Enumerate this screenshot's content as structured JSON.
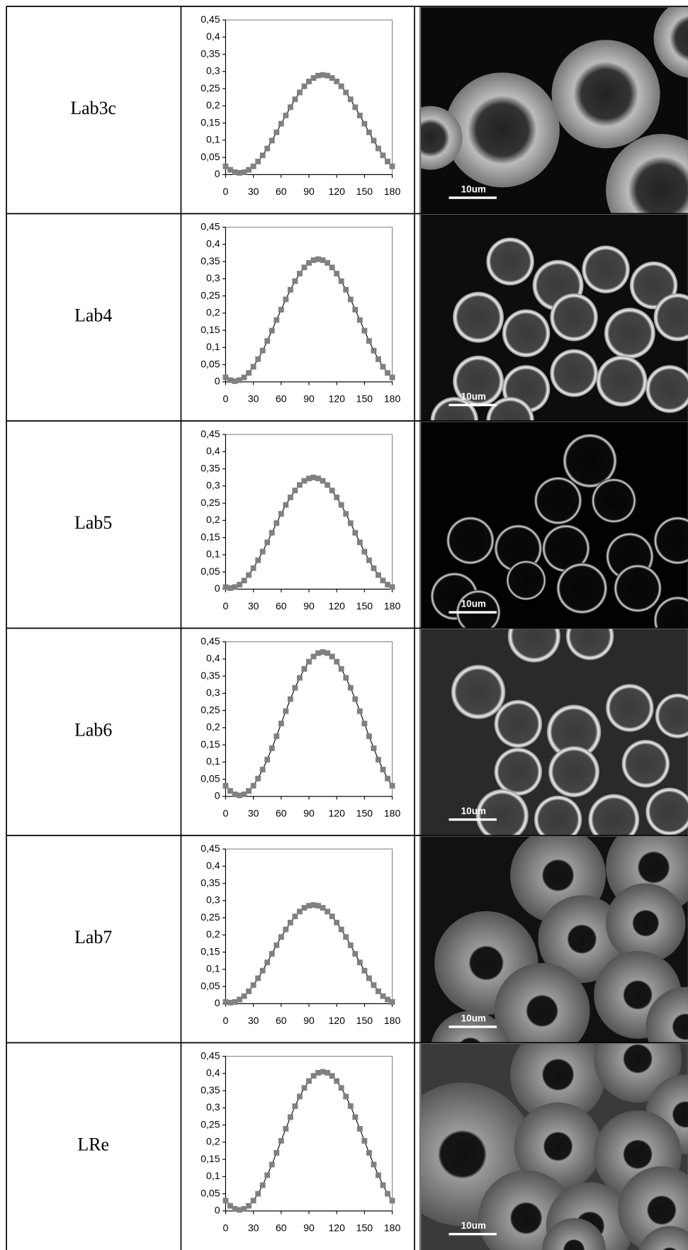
{
  "table": {
    "rows": [
      {
        "label": "Lab3c",
        "scale_bar": "10um"
      },
      {
        "label": "Lab4",
        "scale_bar": "10um"
      },
      {
        "label": "Lab5",
        "scale_bar": "10um"
      },
      {
        "label": "Lab6",
        "scale_bar": "10um"
      },
      {
        "label": "Lab7",
        "scale_bar": "10um"
      },
      {
        "label": "LRe",
        "scale_bar": "10um"
      }
    ]
  },
  "chart_data": [
    {
      "type": "line",
      "x": [
        0,
        5,
        10,
        15,
        20,
        25,
        30,
        35,
        40,
        45,
        50,
        55,
        60,
        65,
        70,
        75,
        80,
        85,
        90,
        95,
        100,
        105,
        110,
        115,
        120,
        125,
        130,
        135,
        140,
        145,
        150,
        155,
        160,
        165,
        170,
        175,
        180
      ],
      "values": [
        0.024,
        0.014,
        0.007,
        0.005,
        0.007,
        0.014,
        0.024,
        0.038,
        0.056,
        0.076,
        0.099,
        0.123,
        0.148,
        0.172,
        0.196,
        0.219,
        0.239,
        0.257,
        0.271,
        0.281,
        0.288,
        0.29,
        0.288,
        0.281,
        0.271,
        0.257,
        0.239,
        0.219,
        0.196,
        0.172,
        0.148,
        0.123,
        0.099,
        0.076,
        0.056,
        0.038,
        0.024
      ],
      "line_color": "#000000",
      "marker_color": "#808080",
      "xlim": [
        0,
        180
      ],
      "ylim": [
        0,
        0.45
      ],
      "xticks": [
        0,
        30,
        60,
        90,
        120,
        150,
        180
      ],
      "yticks": [
        0,
        {
          "value": 0.05,
          "label": "0,05"
        },
        {
          "value": 0.1,
          "label": "0,1"
        },
        {
          "value": 0.15,
          "label": "0,15"
        },
        {
          "value": 0.2,
          "label": "0,2"
        },
        {
          "value": 0.25,
          "label": "0,25"
        },
        {
          "value": 0.3,
          "label": "0,3"
        },
        {
          "value": 0.35,
          "label": "0,35"
        },
        {
          "value": 0.4,
          "label": "0,4"
        },
        {
          "value": 0.45,
          "label": "0,45"
        }
      ]
    },
    {
      "type": "line",
      "x": [
        0,
        5,
        10,
        15,
        20,
        25,
        30,
        35,
        40,
        45,
        50,
        55,
        60,
        65,
        70,
        75,
        80,
        85,
        90,
        95,
        100,
        105,
        110,
        115,
        120,
        125,
        130,
        135,
        140,
        145,
        150,
        155,
        160,
        165,
        170,
        175,
        180
      ],
      "values": [
        0.013,
        0.005,
        0.002,
        0.005,
        0.013,
        0.026,
        0.044,
        0.066,
        0.091,
        0.119,
        0.149,
        0.18,
        0.21,
        0.24,
        0.268,
        0.293,
        0.315,
        0.333,
        0.346,
        0.354,
        0.357,
        0.354,
        0.346,
        0.333,
        0.315,
        0.293,
        0.268,
        0.24,
        0.21,
        0.18,
        0.149,
        0.119,
        0.091,
        0.066,
        0.044,
        0.026,
        0.013
      ],
      "line_color": "#000000",
      "marker_color": "#808080",
      "xlim": [
        0,
        180
      ],
      "ylim": [
        0,
        0.45
      ],
      "xticks": [
        0,
        30,
        60,
        90,
        120,
        150,
        180
      ],
      "yticks": [
        0,
        {
          "value": 0.05,
          "label": "0,05"
        },
        {
          "value": 0.1,
          "label": "0,1"
        },
        {
          "value": 0.15,
          "label": "0,15"
        },
        {
          "value": 0.2,
          "label": "0,2"
        },
        {
          "value": 0.25,
          "label": "0,25"
        },
        {
          "value": 0.3,
          "label": "0,3"
        },
        {
          "value": 0.35,
          "label": "0,35"
        },
        {
          "value": 0.4,
          "label": "0,4"
        },
        {
          "value": 0.45,
          "label": "0,45"
        }
      ]
    },
    {
      "type": "line",
      "x": [
        0,
        5,
        10,
        15,
        20,
        25,
        30,
        35,
        40,
        45,
        50,
        55,
        60,
        65,
        70,
        75,
        80,
        85,
        90,
        95,
        100,
        105,
        110,
        115,
        120,
        125,
        130,
        135,
        140,
        145,
        150,
        155,
        160,
        165,
        170,
        175,
        180
      ],
      "values": [
        0.006,
        0.003,
        0.006,
        0.013,
        0.025,
        0.041,
        0.061,
        0.084,
        0.109,
        0.136,
        0.164,
        0.192,
        0.219,
        0.245,
        0.267,
        0.287,
        0.303,
        0.315,
        0.322,
        0.325,
        0.322,
        0.315,
        0.303,
        0.287,
        0.267,
        0.245,
        0.219,
        0.192,
        0.164,
        0.136,
        0.109,
        0.084,
        0.061,
        0.041,
        0.025,
        0.013,
        0.006
      ],
      "line_color": "#000000",
      "marker_color": "#808080",
      "xlim": [
        0,
        180
      ],
      "ylim": [
        0,
        0.45
      ],
      "xticks": [
        0,
        30,
        60,
        90,
        120,
        150,
        180
      ],
      "yticks": [
        0,
        {
          "value": 0.05,
          "label": "0,05"
        },
        {
          "value": 0.1,
          "label": "0,1"
        },
        {
          "value": 0.15,
          "label": "0,15"
        },
        {
          "value": 0.2,
          "label": "0,2"
        },
        {
          "value": 0.25,
          "label": "0,25"
        },
        {
          "value": 0.3,
          "label": "0,3"
        },
        {
          "value": 0.35,
          "label": "0,35"
        },
        {
          "value": 0.4,
          "label": "0,4"
        },
        {
          "value": 0.45,
          "label": "0,45"
        }
      ]
    },
    {
      "type": "line",
      "x": [
        0,
        5,
        10,
        15,
        20,
        25,
        30,
        35,
        40,
        45,
        50,
        55,
        60,
        65,
        70,
        75,
        80,
        85,
        90,
        95,
        100,
        105,
        110,
        115,
        120,
        125,
        130,
        135,
        140,
        145,
        150,
        155,
        160,
        165,
        170,
        175,
        180
      ],
      "values": [
        0.031,
        0.016,
        0.006,
        0.003,
        0.006,
        0.016,
        0.031,
        0.052,
        0.078,
        0.107,
        0.14,
        0.175,
        0.212,
        0.248,
        0.283,
        0.316,
        0.345,
        0.371,
        0.392,
        0.407,
        0.417,
        0.42,
        0.417,
        0.407,
        0.392,
        0.371,
        0.345,
        0.316,
        0.283,
        0.248,
        0.212,
        0.175,
        0.14,
        0.107,
        0.078,
        0.052,
        0.031
      ],
      "line_color": "#000000",
      "marker_color": "#808080",
      "xlim": [
        0,
        180
      ],
      "ylim": [
        0,
        0.45
      ],
      "xticks": [
        0,
        30,
        60,
        90,
        120,
        150,
        180
      ],
      "yticks": [
        0,
        {
          "value": 0.05,
          "label": "0,05"
        },
        {
          "value": 0.1,
          "label": "0,1"
        },
        {
          "value": 0.15,
          "label": "0,15"
        },
        {
          "value": 0.2,
          "label": "0,2"
        },
        {
          "value": 0.25,
          "label": "0,25"
        },
        {
          "value": 0.3,
          "label": "0,3"
        },
        {
          "value": 0.35,
          "label": "0,35"
        },
        {
          "value": 0.4,
          "label": "0,4"
        },
        {
          "value": 0.45,
          "label": "0,45"
        }
      ]
    },
    {
      "type": "line",
      "x": [
        0,
        5,
        10,
        15,
        20,
        25,
        30,
        35,
        40,
        45,
        50,
        55,
        60,
        65,
        70,
        75,
        80,
        85,
        90,
        95,
        100,
        105,
        110,
        115,
        120,
        125,
        130,
        135,
        140,
        145,
        150,
        155,
        160,
        165,
        170,
        175,
        180
      ],
      "values": [
        0.005,
        0.003,
        0.005,
        0.012,
        0.022,
        0.036,
        0.054,
        0.074,
        0.096,
        0.12,
        0.145,
        0.17,
        0.194,
        0.216,
        0.236,
        0.254,
        0.268,
        0.279,
        0.285,
        0.287,
        0.285,
        0.279,
        0.268,
        0.254,
        0.236,
        0.216,
        0.194,
        0.17,
        0.145,
        0.12,
        0.096,
        0.074,
        0.054,
        0.036,
        0.022,
        0.012,
        0.005
      ],
      "line_color": "#000000",
      "marker_color": "#808080",
      "xlim": [
        0,
        180
      ],
      "ylim": [
        0,
        0.45
      ],
      "xticks": [
        0,
        30,
        60,
        90,
        120,
        150,
        180
      ],
      "yticks": [
        0,
        {
          "value": 0.05,
          "label": "0,05"
        },
        {
          "value": 0.1,
          "label": "0,1"
        },
        {
          "value": 0.15,
          "label": "0,15"
        },
        {
          "value": 0.2,
          "label": "0,2"
        },
        {
          "value": 0.25,
          "label": "0,25"
        },
        {
          "value": 0.3,
          "label": "0,3"
        },
        {
          "value": 0.35,
          "label": "0,35"
        },
        {
          "value": 0.4,
          "label": "0,4"
        },
        {
          "value": 0.45,
          "label": "0,45"
        }
      ]
    },
    {
      "type": "line",
      "x": [
        0,
        5,
        10,
        15,
        20,
        25,
        30,
        35,
        40,
        45,
        50,
        55,
        60,
        65,
        70,
        75,
        80,
        85,
        90,
        95,
        100,
        105,
        110,
        115,
        120,
        125,
        130,
        135,
        140,
        145,
        150,
        155,
        160,
        165,
        170,
        175,
        180
      ],
      "values": [
        0.03,
        0.015,
        0.006,
        0.003,
        0.006,
        0.015,
        0.03,
        0.05,
        0.075,
        0.104,
        0.135,
        0.169,
        0.204,
        0.239,
        0.273,
        0.305,
        0.333,
        0.358,
        0.378,
        0.393,
        0.402,
        0.405,
        0.402,
        0.393,
        0.378,
        0.358,
        0.333,
        0.305,
        0.273,
        0.239,
        0.204,
        0.169,
        0.135,
        0.104,
        0.075,
        0.05,
        0.03
      ],
      "line_color": "#000000",
      "marker_color": "#808080",
      "xlim": [
        0,
        180
      ],
      "ylim": [
        0,
        0.45
      ],
      "xticks": [
        0,
        30,
        60,
        90,
        120,
        150,
        180
      ],
      "yticks": [
        0,
        {
          "value": 0.05,
          "label": "0,05"
        },
        {
          "value": 0.1,
          "label": "0,1"
        },
        {
          "value": 0.15,
          "label": "0,15"
        },
        {
          "value": 0.2,
          "label": "0,2"
        },
        {
          "value": 0.25,
          "label": "0,25"
        },
        {
          "value": 0.3,
          "label": "0,3"
        },
        {
          "value": 0.35,
          "label": "0,35"
        },
        {
          "value": 0.4,
          "label": "0,4"
        },
        {
          "value": 0.45,
          "label": "0,45"
        }
      ]
    }
  ]
}
